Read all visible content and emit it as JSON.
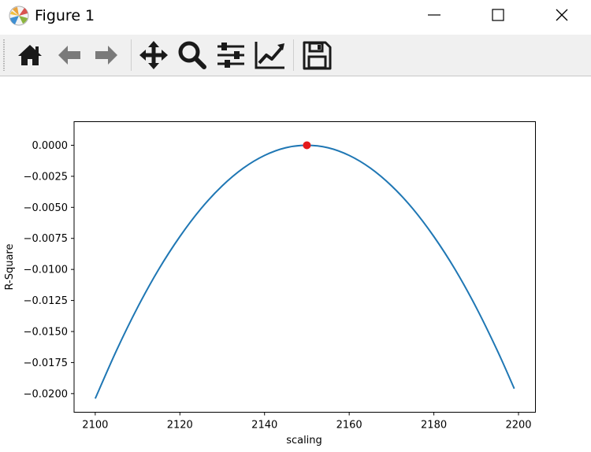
{
  "window": {
    "title": "Figure 1",
    "controls": [
      "minimize",
      "maximize",
      "close"
    ]
  },
  "toolbar": {
    "tools": [
      {
        "name": "home-icon"
      },
      {
        "name": "back-arrow-icon"
      },
      {
        "name": "forward-arrow-icon"
      },
      {
        "name": "pan-move-icon"
      },
      {
        "name": "zoom-magnifier-icon"
      },
      {
        "name": "subplots-sliders-icon"
      },
      {
        "name": "edit-axes-icon"
      },
      {
        "name": "save-floppy-icon"
      }
    ],
    "icon_color": "#1a1a1a",
    "disabled_color": "#7a7a7a"
  },
  "chart_data": {
    "type": "line",
    "title": "",
    "xlabel": "scaling",
    "ylabel": "R-Square",
    "xlim": [
      2095,
      2204
    ],
    "ylim": [
      -0.0215,
      0.0019
    ],
    "xticks": [
      2100,
      2120,
      2140,
      2160,
      2180,
      2200
    ],
    "yticks": [
      0.0,
      -0.0025,
      -0.005,
      -0.0075,
      -0.01,
      -0.0125,
      -0.015,
      -0.0175,
      -0.02
    ],
    "ytick_labels": [
      "0.0000",
      "−0.0025",
      "−0.0050",
      "−0.0075",
      "−0.0100",
      "−0.0125",
      "−0.0150",
      "−0.0175",
      "−0.0200"
    ],
    "grid": false,
    "series": [
      {
        "color": "#1f77b4",
        "x": [
          2100,
          2105,
          2110,
          2115,
          2120,
          2125,
          2130,
          2135,
          2140,
          2145,
          2150,
          2155,
          2160,
          2165,
          2170,
          2175,
          2180,
          2185,
          2190,
          2195,
          2199
        ],
        "y": [
          -0.0204,
          -0.01654,
          -0.01306,
          -0.00999,
          -0.00735,
          -0.0051,
          -0.00327,
          -0.00184,
          -0.00082,
          -0.0002,
          0.0,
          -0.0002,
          -0.00082,
          -0.00184,
          -0.00327,
          -0.0051,
          -0.00735,
          -0.00999,
          -0.01306,
          -0.01654,
          -0.0196
        ]
      }
    ],
    "marker": {
      "x": 2150,
      "y": 0.0,
      "color": "#e41a1c"
    }
  }
}
